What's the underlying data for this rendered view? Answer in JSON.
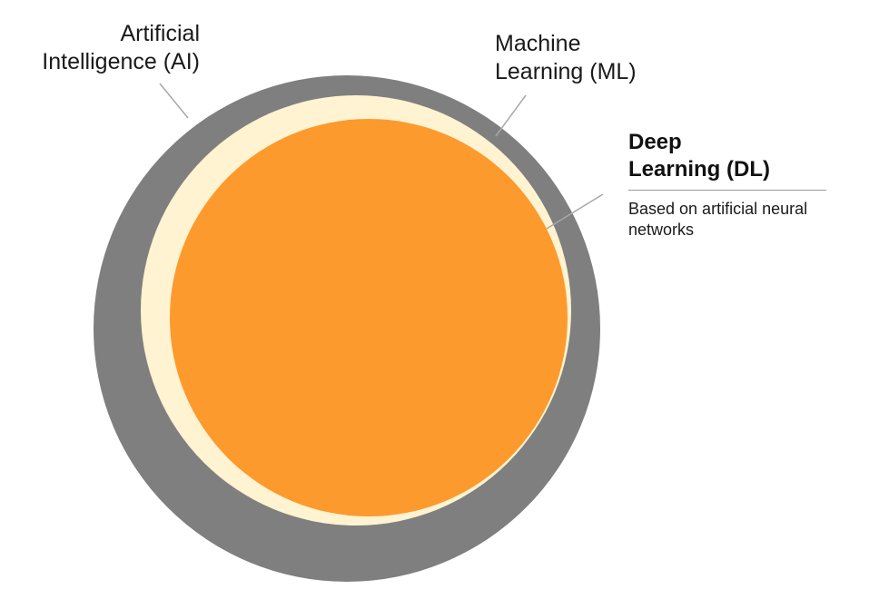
{
  "ai": {
    "line1": "Artificial",
    "line2": "Intelligence (AI)"
  },
  "ml": {
    "line1": "Machine",
    "line2": "Learning (ML)"
  },
  "dl": {
    "line1": "Deep",
    "line2": "Learning (DL)",
    "description_line1": "Based on artificial neural",
    "description_line2": "networks"
  },
  "colors": {
    "ai_ring": "#7f7f7f",
    "ml_ring": "#fff3d1",
    "dl_core": "#fd9a2d",
    "leader": "#a8a8a8"
  }
}
